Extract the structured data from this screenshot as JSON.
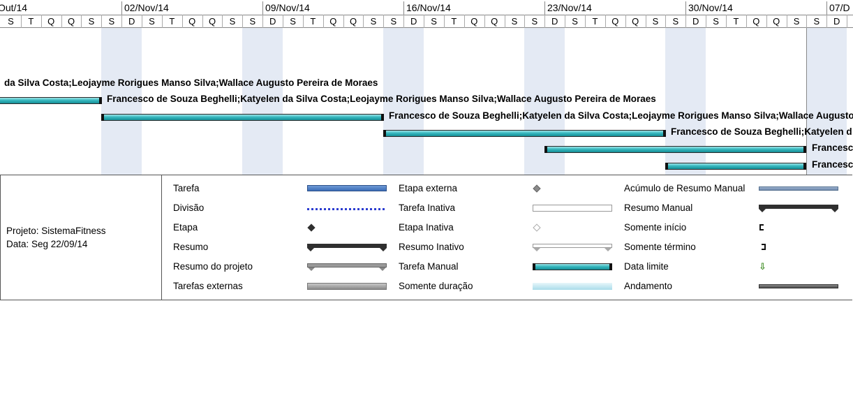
{
  "timeline": {
    "weeks": [
      "Out/14",
      "02/Nov/14",
      "09/Nov/14",
      "16/Nov/14",
      "23/Nov/14",
      "30/Nov/14",
      "07/D"
    ],
    "days": [
      "S",
      "T",
      "Q",
      "Q",
      "S",
      "S",
      "D",
      "S",
      "T",
      "Q",
      "Q",
      "S",
      "S",
      "D",
      "S",
      "T",
      "Q",
      "Q",
      "S",
      "S",
      "D",
      "S",
      "T",
      "Q",
      "Q",
      "S",
      "S",
      "D",
      "S",
      "T",
      "Q",
      "Q",
      "S",
      "S",
      "D",
      "S",
      "T",
      "Q",
      "Q",
      "S",
      "S",
      "D"
    ]
  },
  "tasks": [
    {
      "label": "da Silva Costa;Leojayme Rorigues Manso Silva;Wallace Augusto Pereira de Moraes"
    },
    {
      "label": "Francesco de Souza Beghelli;Katyelen da Silva Costa;Leojayme Rorigues Manso Silva;Wallace Augusto Pereira de Moraes"
    },
    {
      "label": "Francesco de Souza Beghelli;Katyelen da Silva Costa;Leojayme Rorigues Manso Silva;Wallace Augusto"
    },
    {
      "label": "Francesco de Souza Beghelli;Katyelen d"
    },
    {
      "label": "Francesc"
    },
    {
      "label": "Francesc"
    }
  ],
  "project": {
    "name": "Projeto: SistemaFitness",
    "date": "Data: Seg 22/09/14"
  },
  "legend": {
    "col1": [
      "Tarefa",
      "Divisão",
      "Etapa",
      "Resumo",
      "Resumo do projeto",
      "Tarefas externas"
    ],
    "col2": [
      "Etapa externa",
      "Tarefa Inativa",
      "Etapa Inativa",
      "Resumo Inativo",
      "Tarefa Manual",
      "Somente duração"
    ],
    "col3": [
      "Acúmulo de Resumo Manual",
      "Resumo Manual",
      "Somente início",
      "Somente término",
      "Data limite",
      "Andamento"
    ]
  },
  "icons": {
    "milestone": "diamond-icon",
    "external-milestone": "diamond-gray-icon",
    "inactive-milestone": "diamond-hollow-icon",
    "start-only": "bracket-start-icon",
    "finish-only": "bracket-end-icon",
    "deadline": "green-down-arrow-icon"
  },
  "colors": {
    "task": "#3a6cb7",
    "manual_task": "#36b8bf",
    "weekend": "#e4eaf4"
  }
}
